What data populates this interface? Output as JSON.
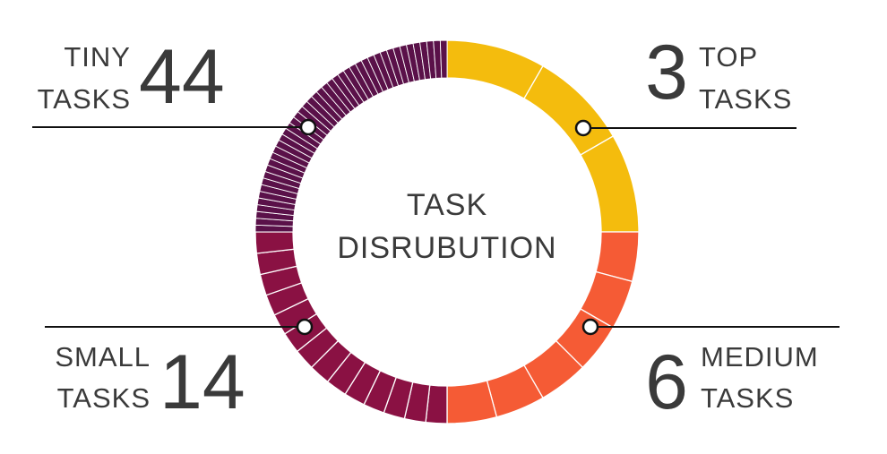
{
  "chart_data": {
    "type": "pie",
    "variant": "donut",
    "title": "TASK DISRUBUTION",
    "center_lines": [
      "TASK",
      "DISRUBUTION"
    ],
    "segments": [
      {
        "key": "top",
        "value": 3,
        "label_lines": [
          "TOP",
          "TASKS"
        ],
        "color": "#F4BC0D"
      },
      {
        "key": "medium",
        "value": 6,
        "label_lines": [
          "MEDIUM",
          "TASKS"
        ],
        "color": "#F55B35"
      },
      {
        "key": "small",
        "value": 14,
        "label_lines": [
          "SMALL",
          "TASKS"
        ],
        "color": "#8A1143"
      },
      {
        "key": "tiny",
        "value": 44,
        "label_lines": [
          "TINY",
          "TASKS"
        ],
        "color": "#5A1149"
      }
    ],
    "quadrant_layout": "each task group fills one quarter of the ring, starting at 12 o'clock clockwise: top, medium, small, tiny"
  }
}
